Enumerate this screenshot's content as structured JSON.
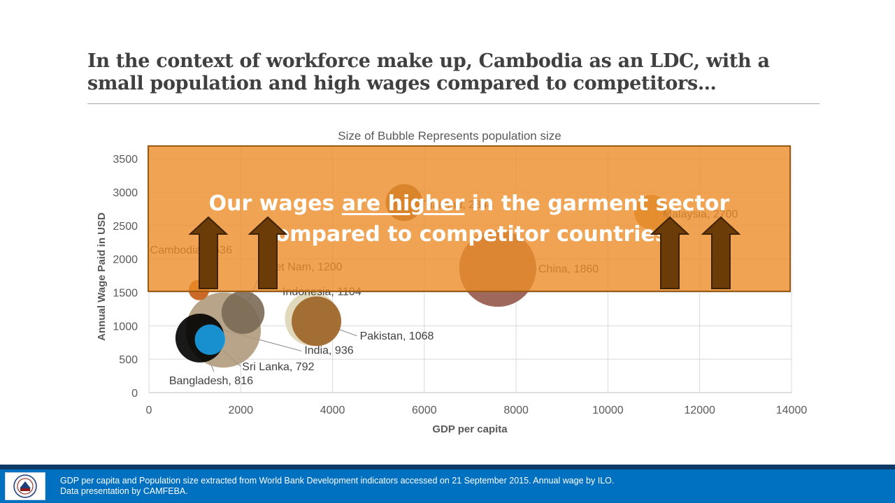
{
  "slide": {
    "title": "In the context of workforce make up, Cambodia as an LDC, with a small population and high wages compared to competitors…"
  },
  "callout": {
    "text_before": "Our wages ",
    "text_underlined": "are higher",
    "text_after": " in the garment sector compared to competitor countries.",
    "fill_color": "#eb8c28"
  },
  "footer": {
    "line1": "GDP per capita and Population size extracted from World Bank Development indicators accessed on 21 September 2015.  Annual wage by ILO.",
    "line2": "Data presentation by CAMFEBA.",
    "logo_icon": "camfeba-logo-icon",
    "bar_color": "#0070c0"
  },
  "chart_data": {
    "type": "scatter",
    "subtype": "bubble",
    "title": "Size of Bubble Represents population size",
    "xlabel": "GDP per capita",
    "ylabel": "Annual Wage Paid in USD",
    "xlim": [
      0,
      14000
    ],
    "ylim": [
      0,
      3700
    ],
    "x_ticks": [
      0,
      2000,
      4000,
      6000,
      8000,
      10000,
      12000,
      14000
    ],
    "y_ticks": [
      0,
      500,
      1000,
      1500,
      2000,
      2500,
      3000,
      3500
    ],
    "grid": true,
    "points": [
      {
        "label": "Cambodia, 1536",
        "x": 1090,
        "y": 1536,
        "bubble": 0.15,
        "color": "#c55a11",
        "label_anchor": "Cambodia, 1536"
      },
      {
        "label": "Viet Nam, 1200",
        "x": 2050,
        "y": 1200,
        "bubble": 0.9,
        "color": "#7a6a55"
      },
      {
        "label": "Indonesia, 1104",
        "x": 3550,
        "y": 1104,
        "bubble": 1.6,
        "color": "#ddd5b5"
      },
      {
        "label": "Pakistan, 1068",
        "x": 3650,
        "y": 1068,
        "bubble": 1.3,
        "color": "#9c6223"
      },
      {
        "label": "India, 936",
        "x": 1620,
        "y": 936,
        "bubble": 3.5,
        "color": "#b09a7c"
      },
      {
        "label": "Sri Lanka, 792",
        "x": 1330,
        "y": 792,
        "bubble": 0.35,
        "color": "#1a9de3"
      },
      {
        "label": "Bangladesh, 816",
        "x": 1110,
        "y": 816,
        "bubble": 1.25,
        "color": "#000000"
      },
      {
        "label": "Thailand, 2844",
        "x": 5560,
        "y": 2844,
        "bubble": 0.6,
        "color": "#8a5a22"
      },
      {
        "label": "China, 1860",
        "x": 7600,
        "y": 1860,
        "bubble": 3.7,
        "color": "#94584a"
      },
      {
        "label": "Malaysia, 2700",
        "x": 10950,
        "y": 2700,
        "bubble": 0.5,
        "color": "#c08a3a"
      }
    ]
  }
}
